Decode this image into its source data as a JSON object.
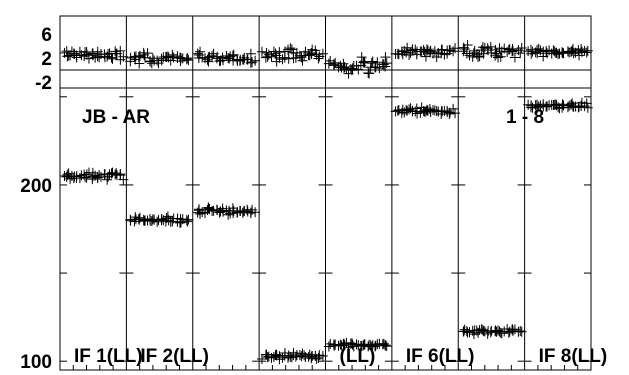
{
  "chart_data": {
    "type": "scatter",
    "title": "",
    "baseline_label": "JB - AR",
    "scan_label": "1 - 8",
    "top_panel": {
      "ylabel": "",
      "yticks": [
        6,
        2,
        -2
      ],
      "ylim": [
        -3,
        9
      ]
    },
    "main_panel": {
      "ylabel": "",
      "yticks": [
        200,
        100
      ],
      "ylim": [
        95,
        255
      ]
    },
    "panels": [
      {
        "label": "IF 1(LL)",
        "phase_center": 2.5,
        "phase_spread": 1.2,
        "amp_center": 205,
        "amp_spread": 3
      },
      {
        "label": "IF 2(LL)",
        "phase_center": 2.0,
        "phase_spread": 1.3,
        "amp_center": 180,
        "amp_spread": 2
      },
      {
        "label": "",
        "phase_center": 2.0,
        "phase_spread": 1.3,
        "amp_center": 185,
        "amp_spread": 2
      },
      {
        "label": "",
        "phase_center": 2.5,
        "phase_spread": 1.6,
        "amp_center": 103,
        "amp_spread": 2
      },
      {
        "label": "(LL)",
        "phase_center": 1.0,
        "phase_spread": 1.8,
        "amp_center": 109,
        "amp_spread": 1.5
      },
      {
        "label": "IF 6(LL)",
        "phase_center": 3.0,
        "phase_spread": 1.1,
        "amp_center": 242,
        "amp_spread": 2
      },
      {
        "label": "",
        "phase_center": 3.0,
        "phase_spread": 1.7,
        "amp_center": 117,
        "amp_spread": 2
      },
      {
        "label": "IF 8(LL)",
        "phase_center": 3.0,
        "phase_spread": 0.9,
        "amp_center": 245,
        "amp_spread": 2
      }
    ]
  }
}
